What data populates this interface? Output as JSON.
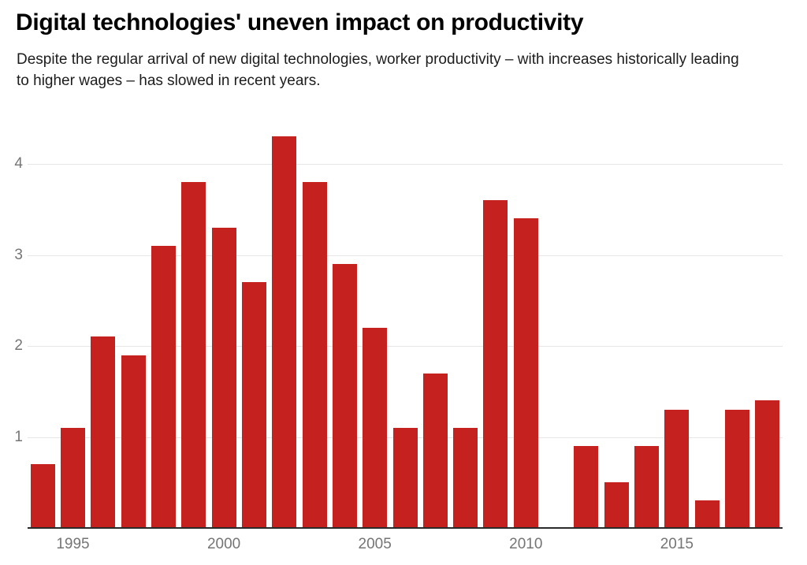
{
  "chart_data": {
    "type": "bar",
    "title": "Digital technologies' uneven impact on productivity",
    "subtitle": "Despite the regular arrival of new digital technologies, worker productivity – with increases historically leading to higher wages – has slowed in recent years.",
    "categories": [
      1994,
      1995,
      1996,
      1997,
      1998,
      1999,
      2000,
      2001,
      2002,
      2003,
      2004,
      2005,
      2006,
      2007,
      2008,
      2009,
      2010,
      2011,
      2012,
      2013,
      2014,
      2015,
      2016,
      2017,
      2018
    ],
    "values": [
      0.7,
      1.1,
      2.1,
      1.9,
      3.1,
      3.8,
      3.3,
      2.7,
      4.3,
      3.8,
      2.9,
      2.2,
      1.1,
      1.7,
      1.1,
      3.6,
      3.4,
      null,
      0.9,
      0.5,
      0.9,
      1.3,
      0.3,
      1.3,
      1.4
    ],
    "xlabel": "",
    "ylabel": "",
    "ylim": [
      0,
      4.5
    ],
    "yticks": [
      1,
      2,
      3,
      4
    ],
    "xticks": [
      1995,
      2000,
      2005,
      2010,
      2015
    ],
    "grid": true,
    "legend": false,
    "bar_color": "#c4211f",
    "gridline_color": "#e6e6e6",
    "axis_line_color": "#2a2a2a",
    "tick_label_color": "#757575"
  }
}
